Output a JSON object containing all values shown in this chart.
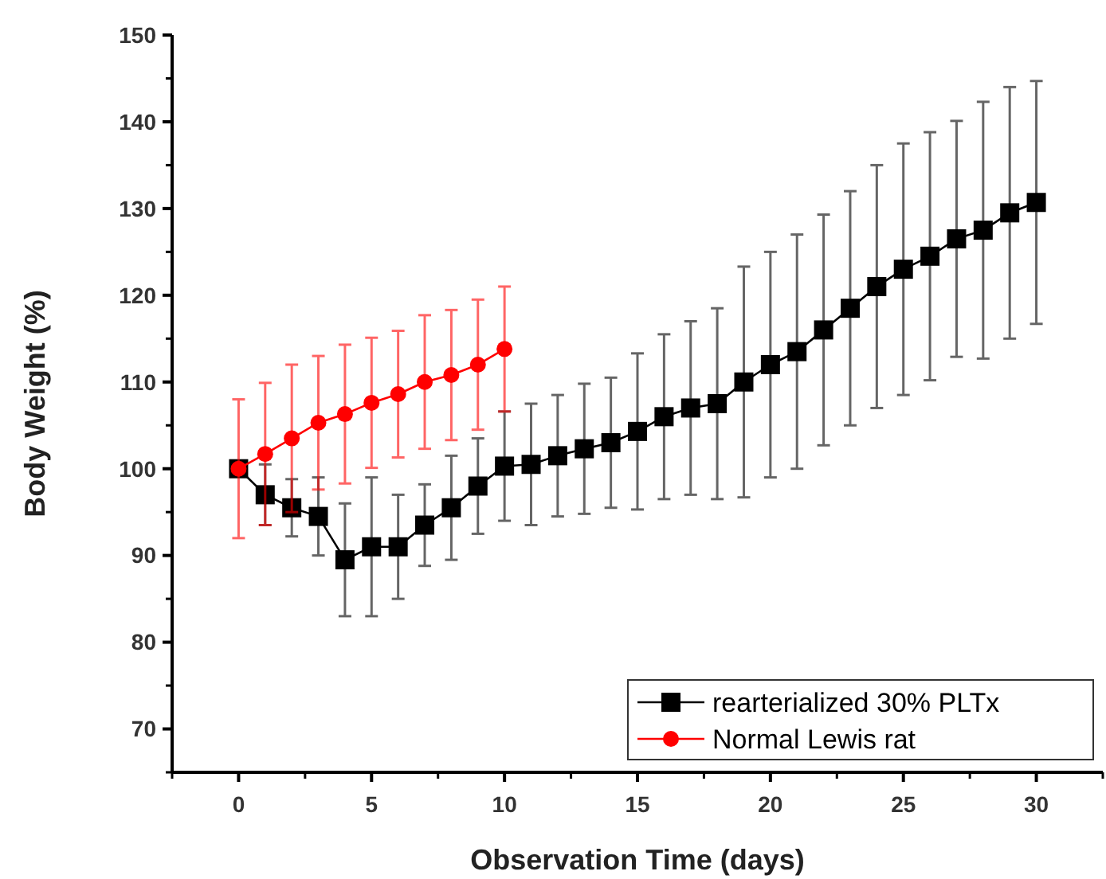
{
  "chart_data": {
    "type": "line",
    "xlabel": "Observation Time (days)",
    "ylabel": "Body Weight (%)",
    "xlim": [
      -2.5,
      32.5
    ],
    "xticks": [
      0,
      5,
      10,
      15,
      20,
      25,
      30
    ],
    "ylim": [
      65,
      150
    ],
    "yticks": [
      70,
      80,
      90,
      100,
      110,
      120,
      130,
      140,
      150
    ],
    "grid": false,
    "legend": "bottom right",
    "line_style": "solid",
    "series": [
      {
        "name": "rearterialized 30% PLTx",
        "color": "#000000",
        "marker": "square",
        "x": [
          0,
          1,
          2,
          3,
          4,
          5,
          6,
          7,
          8,
          9,
          10,
          11,
          12,
          13,
          14,
          15,
          16,
          17,
          18,
          19,
          20,
          21,
          22,
          23,
          24,
          25,
          26,
          27,
          28,
          29,
          30
        ],
        "values": [
          100,
          97,
          95.5,
          94.5,
          89.5,
          91,
          91,
          93.5,
          95.5,
          98,
          100.3,
          100.5,
          101.5,
          102.3,
          103,
          104.3,
          106,
          107,
          107.5,
          110,
          112,
          113.5,
          116,
          118.5,
          121,
          123,
          124.5,
          126.5,
          127.5,
          129.5,
          130.7
        ],
        "errors": [
          null,
          3.5,
          3.3,
          4.5,
          6.5,
          8,
          6,
          4.7,
          6,
          5.5,
          6.3,
          7,
          7,
          7.5,
          7.5,
          9,
          9.5,
          10,
          11,
          13.3,
          13,
          13.5,
          13.3,
          13.5,
          14,
          14.5,
          14.3,
          13.6,
          14.8,
          14.5,
          14
        ]
      },
      {
        "name": "Normal Lewis rat",
        "color": "#ff0000",
        "marker": "circle",
        "x": [
          0,
          1,
          2,
          3,
          4,
          5,
          6,
          7,
          8,
          9,
          10
        ],
        "values": [
          100,
          101.7,
          103.5,
          105.3,
          106.3,
          107.6,
          108.6,
          110,
          110.8,
          112,
          113.8
        ],
        "errors": [
          8,
          8.2,
          8.5,
          7.7,
          8,
          7.5,
          7.3,
          7.7,
          7.5,
          7.5,
          7.2
        ]
      }
    ]
  }
}
